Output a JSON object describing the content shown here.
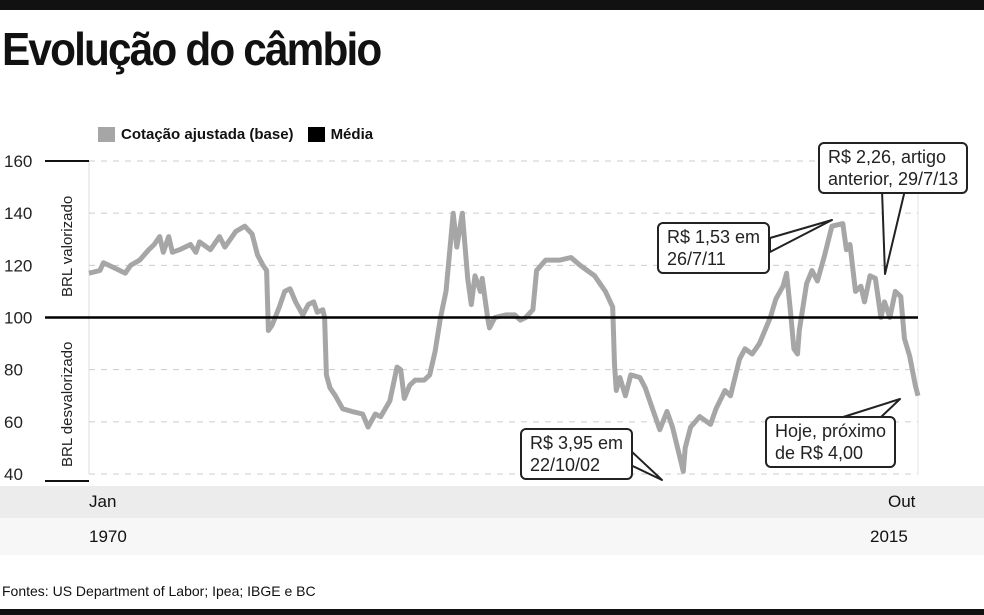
{
  "title": "Evolução do câmbio",
  "legend": [
    {
      "label": "Cotação ajustada (base)",
      "color": "#a6a6a6"
    },
    {
      "label": "Média",
      "color": "#000000"
    }
  ],
  "y_labels": {
    "upper": "BRL valorizado",
    "lower": "BRL desvalorizado"
  },
  "x_labels": {
    "start_month": "Jan",
    "end_month": "Out",
    "start_year": "1970",
    "end_year": "2015"
  },
  "annotations": {
    "low_2002": [
      "R$ 3,95 em",
      "22/10/02"
    ],
    "peak_2011": [
      "R$ 1,53 em",
      "26/7/11"
    ],
    "prev_2013": [
      "R$ 2,26, artigo",
      "anterior, 29/7/13"
    ],
    "today": [
      "Hoje, próximo",
      "de R$ 4,00"
    ]
  },
  "source": "Fontes:  US Department of Labor;  Ipea; IBGE e BC",
  "chart_data": {
    "type": "line",
    "title": "Evolução do câmbio",
    "xlabel": "",
    "ylabel": "",
    "xlim": [
      1970.0,
      2015.75
    ],
    "ylim": [
      40,
      160
    ],
    "yticks": [
      40,
      60,
      80,
      100,
      120,
      140,
      160
    ],
    "grid": true,
    "legend": "top-left",
    "reference_line": {
      "name": "Média",
      "value": 100
    },
    "series": [
      {
        "name": "Cotação ajustada (base)",
        "x": [
          1970.0,
          1970.6,
          1970.8,
          1971.7,
          1972.0,
          1972.3,
          1972.8,
          1973.3,
          1973.6,
          1973.9,
          1974.1,
          1974.4,
          1974.6,
          1975.0,
          1975.6,
          1975.9,
          1976.1,
          1976.7,
          1977.2,
          1977.5,
          1978.1,
          1978.6,
          1979.0,
          1979.3,
          1979.6,
          1979.8,
          1979.9,
          1980.1,
          1980.5,
          1980.8,
          1981.1,
          1981.4,
          1981.8,
          1982.1,
          1982.4,
          1982.6,
          1982.9,
          1983.0,
          1983.1,
          1983.3,
          1983.6,
          1984.0,
          1984.5,
          1985.1,
          1985.4,
          1985.8,
          1986.1,
          1986.6,
          1987.0,
          1987.2,
          1987.4,
          1987.7,
          1988.0,
          1988.5,
          1988.8,
          1989.1,
          1989.4,
          1989.7,
          1989.9,
          1990.1,
          1990.3,
          1990.6,
          1990.9,
          1991.1,
          1991.3,
          1991.6,
          1991.7,
          1992.0,
          1992.1,
          1992.4,
          1993.0,
          1993.5,
          1993.8,
          1994.1,
          1994.5,
          1994.7,
          1995.2,
          1996.0,
          1996.6,
          1997.1,
          1997.9,
          1998.5,
          1998.9,
          1999.0,
          1999.1,
          1999.3,
          1999.6,
          1999.9,
          2000.4,
          2000.7,
          2001.1,
          2001.5,
          2001.9,
          2002.2,
          2002.8,
          2002.9,
          2003.2,
          2003.7,
          2004.3,
          2004.6,
          2005.1,
          2005.4,
          2005.9,
          2006.2,
          2006.6,
          2007.0,
          2007.6,
          2007.9,
          2008.3,
          2008.5,
          2008.7,
          2008.9,
          2009.1,
          2009.2,
          2009.6,
          2009.9,
          2010.2,
          2010.6,
          2011.0,
          2011.6,
          2011.8,
          2012.0,
          2012.3,
          2012.6,
          2012.8,
          2013.1,
          2013.4,
          2013.7,
          2013.9,
          2014.2,
          2014.5,
          2014.8,
          2015.0,
          2015.3,
          2015.6,
          2015.75
        ],
        "y": [
          117,
          118,
          121,
          118,
          117,
          120,
          122,
          126,
          128,
          131,
          125,
          131,
          125,
          126,
          128,
          125,
          129,
          126,
          131,
          127,
          133,
          135,
          132,
          124,
          120,
          118,
          95,
          97,
          104,
          110,
          111,
          106,
          101,
          105,
          106,
          102,
          103,
          100,
          78,
          73,
          70,
          65,
          64,
          63,
          58,
          63,
          62,
          68,
          81,
          80,
          69,
          74,
          76,
          76,
          78,
          87,
          100,
          110,
          125,
          140,
          127,
          140,
          115,
          105,
          116,
          110,
          115,
          100,
          96,
          100,
          101,
          101,
          99,
          100,
          103,
          118,
          122,
          122,
          123,
          120,
          116,
          110,
          104,
          82,
          72,
          77,
          70,
          78,
          77,
          73,
          65,
          57,
          64,
          58,
          41,
          50,
          58,
          62,
          59,
          65,
          72,
          70,
          84,
          88,
          86,
          90,
          100,
          107,
          112,
          117,
          103,
          88,
          86,
          95,
          113,
          118,
          114,
          124,
          135,
          136,
          126,
          128,
          110,
          112,
          106,
          116,
          115,
          100,
          106,
          100,
          110,
          108,
          92,
          85,
          74,
          70
        ]
      }
    ]
  }
}
